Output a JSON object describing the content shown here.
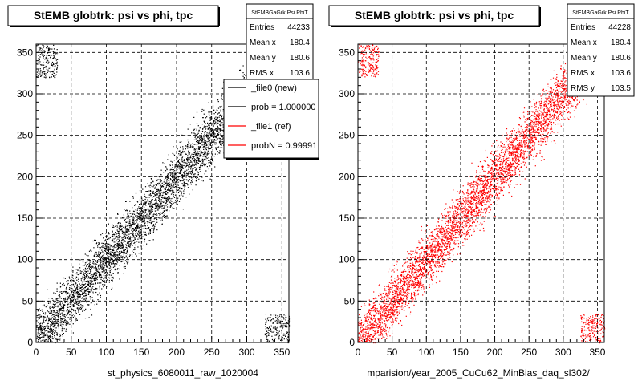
{
  "colors": {
    "left": "#000000",
    "right": "#ff0000",
    "box_fill": "#ffffff"
  },
  "chart_data": [
    {
      "type": "scatter",
      "title": "StEMB globtrk: psi vs phi, tpc",
      "xlabel": "st_physics_6080011_raw_1020004",
      "ylabel": "",
      "xlim": [
        0,
        360
      ],
      "ylim": [
        0,
        360
      ],
      "xticks": [
        "0",
        "50",
        "100",
        "150",
        "200",
        "250",
        "300",
        "350"
      ],
      "yticks": [
        "0",
        "50",
        "100",
        "150",
        "200",
        "250",
        "300",
        "350"
      ],
      "grid": true,
      "color": "#000000",
      "trend": {
        "x": [
          0,
          360
        ],
        "y": [
          0,
          360
        ],
        "band_halfwidth": 40
      },
      "stats": {
        "name": "StEMBGaGrk Psi PhiT",
        "rows": [
          {
            "label": "Entries",
            "value": "44233"
          },
          {
            "label": "Mean x",
            "value": "180.4"
          },
          {
            "label": "Mean y",
            "value": "180.6"
          },
          {
            "label": "RMS x",
            "value": "103.6"
          }
        ]
      },
      "legend": {
        "placement": "top-right",
        "entries": [
          {
            "label": "_file0 (new)",
            "color": "#000000"
          },
          {
            "label": "prob = 1.000000",
            "color": "#000000"
          },
          {
            "label": "_file1 (ref)",
            "color": "#ff0000"
          },
          {
            "label": "probN = 0.99991",
            "color": "#ff0000"
          }
        ]
      }
    },
    {
      "type": "scatter",
      "title": "StEMB globtrk: psi vs phi, tpc",
      "xlabel": "mparision/year_2005_CuCu62_MinBias_daq_sl302/",
      "ylabel": "",
      "xlim": [
        0,
        360
      ],
      "ylim": [
        0,
        360
      ],
      "xticks": [
        "0",
        "50",
        "100",
        "150",
        "200",
        "250",
        "300",
        "350"
      ],
      "yticks": [
        "0",
        "50",
        "100",
        "150",
        "200",
        "250",
        "300",
        "350"
      ],
      "grid": true,
      "color": "#ff0000",
      "trend": {
        "x": [
          0,
          360
        ],
        "y": [
          0,
          360
        ],
        "band_halfwidth": 40
      },
      "stats": {
        "name": "StEMBGaGrk Psi PhiT",
        "rows": [
          {
            "label": "Entries",
            "value": "44228"
          },
          {
            "label": "Mean x",
            "value": "180.4"
          },
          {
            "label": "Mean y",
            "value": "180.6"
          },
          {
            "label": "RMS x",
            "value": "103.6"
          },
          {
            "label": "RMS y",
            "value": "103.5"
          }
        ]
      }
    }
  ]
}
